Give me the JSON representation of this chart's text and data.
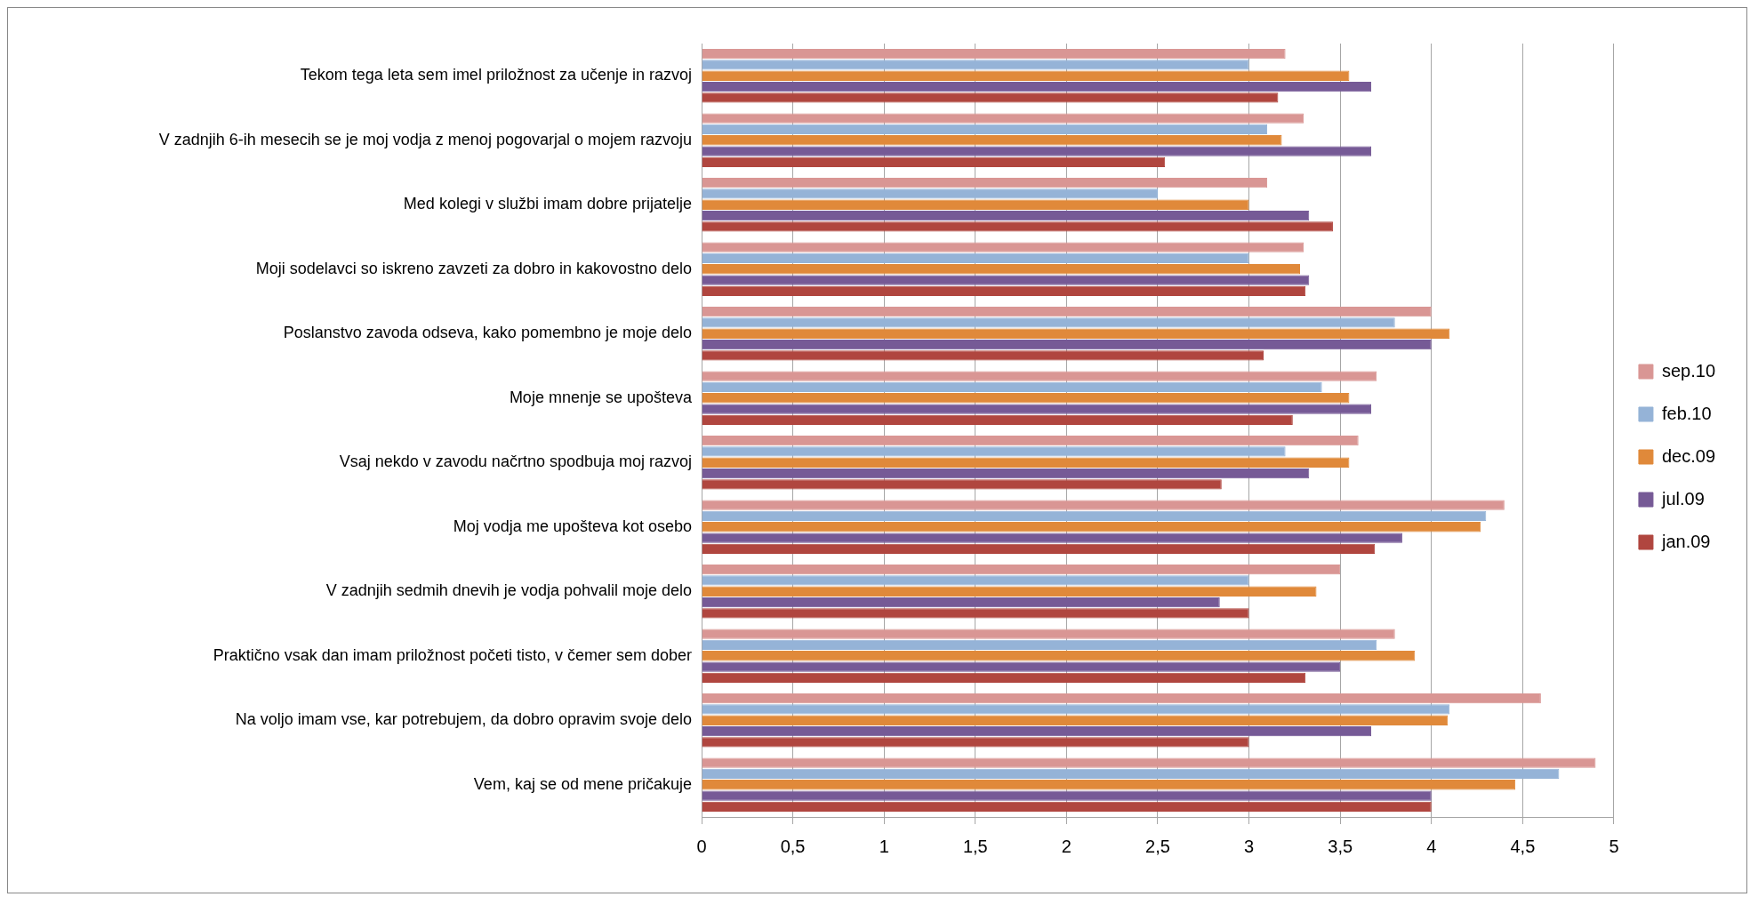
{
  "chart_data": {
    "type": "bar",
    "orientation": "horizontal",
    "categories": [
      "Tekom tega leta sem imel priložnost za učenje in razvoj",
      "V zadnjih 6-ih mesecih se je moj vodja z menoj pogovarjal o mojem razvoju",
      "Med kolegi v službi imam dobre prijatelje",
      "Moji sodelavci so iskreno zavzeti za dobro in kakovostno delo",
      "Poslanstvo zavoda odseva, kako pomembno je moje delo",
      "Moje mnenje se upošteva",
      "Vsaj nekdo v zavodu načrtno spodbuja moj razvoj",
      "Moj vodja me upošteva kot osebo",
      "V zadnjih sedmih dnevih je vodja pohvalil moje delo",
      "Praktično vsak dan imam priložnost početi tisto, v čemer sem dober",
      "Na voljo imam vse, kar potrebujem, da dobro opravim svoje delo",
      "Vem, kaj se od mene pričakuje"
    ],
    "series": [
      {
        "name": "sep.10",
        "color": "#d99694",
        "values": [
          3.2,
          3.3,
          3.1,
          3.3,
          4.0,
          3.7,
          3.6,
          4.4,
          3.5,
          3.8,
          4.6,
          4.9
        ]
      },
      {
        "name": "feb.10",
        "color": "#95b3d7",
        "values": [
          3.0,
          3.1,
          2.5,
          3.0,
          3.8,
          3.4,
          3.2,
          4.3,
          3.0,
          3.7,
          4.1,
          4.7
        ]
      },
      {
        "name": "dec.09",
        "color": "#e0893a",
        "values": [
          3.55,
          3.18,
          3.0,
          3.28,
          4.1,
          3.55,
          3.55,
          4.27,
          3.37,
          3.91,
          4.09,
          4.46
        ]
      },
      {
        "name": "jul.09",
        "color": "#765a96",
        "values": [
          3.67,
          3.67,
          3.33,
          3.33,
          4.0,
          3.67,
          3.33,
          3.84,
          2.84,
          3.5,
          3.67,
          4.0
        ]
      },
      {
        "name": "jan.09",
        "color": "#b0463f",
        "values": [
          3.16,
          2.54,
          3.46,
          3.31,
          3.08,
          3.24,
          2.85,
          3.69,
          3.0,
          3.31,
          3.0,
          4.0
        ]
      }
    ],
    "xlim": [
      0,
      5
    ],
    "xticks": [
      0,
      {
        "value": 0.5,
        "label": "0,5"
      },
      1,
      {
        "value": 1.5,
        "label": "1,5"
      },
      2,
      {
        "value": 2.5,
        "label": "2,5"
      },
      3,
      {
        "value": 3.5,
        "label": "3,5"
      },
      4,
      {
        "value": 4.5,
        "label": "4,5"
      },
      5
    ],
    "grid": "x",
    "legend": "right"
  }
}
